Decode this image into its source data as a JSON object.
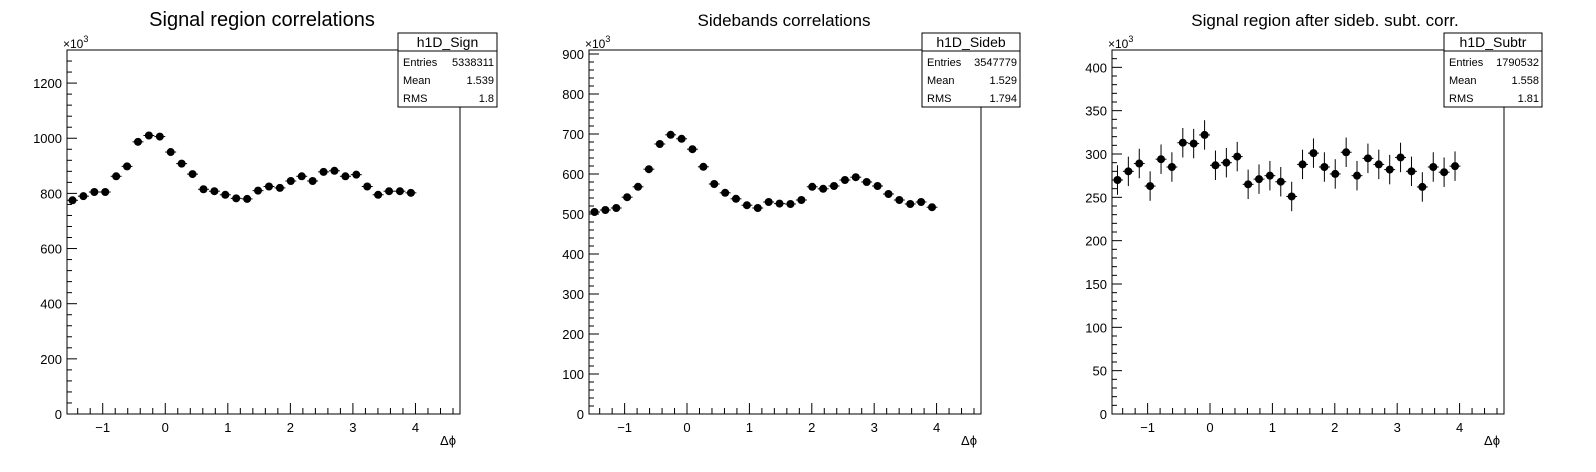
{
  "chart_data": [
    {
      "type": "scatter",
      "title": "Signal region correlations",
      "xlabel": "Δϕ",
      "ylabel": "",
      "y_multiplier_label": "×10",
      "y_multiplier_exp": "3",
      "xlim": [
        -1.571,
        4.712
      ],
      "ylim": [
        0,
        1320
      ],
      "x_ticks": [
        -1,
        0,
        1,
        2,
        3,
        4
      ],
      "y_ticks": [
        0,
        200,
        400,
        600,
        800,
        1000,
        1200
      ],
      "stats": {
        "name": "h1D_Sign",
        "entries_label": "Entries",
        "entries": "5338311",
        "mean_label": "Mean",
        "mean": "1.539",
        "rms_label": "RMS",
        "rms": "1.8"
      },
      "points": [
        {
          "x": -1.483,
          "y": 775
        },
        {
          "x": -1.309,
          "y": 790
        },
        {
          "x": -1.134,
          "y": 805
        },
        {
          "x": -0.96,
          "y": 805
        },
        {
          "x": -0.785,
          "y": 862
        },
        {
          "x": -0.611,
          "y": 898
        },
        {
          "x": -0.436,
          "y": 987
        },
        {
          "x": -0.262,
          "y": 1010
        },
        {
          "x": -0.087,
          "y": 1006
        },
        {
          "x": 0.087,
          "y": 950
        },
        {
          "x": 0.262,
          "y": 908
        },
        {
          "x": 0.436,
          "y": 870
        },
        {
          "x": 0.611,
          "y": 815
        },
        {
          "x": 0.785,
          "y": 808
        },
        {
          "x": 0.96,
          "y": 795
        },
        {
          "x": 1.134,
          "y": 782
        },
        {
          "x": 1.309,
          "y": 780
        },
        {
          "x": 1.483,
          "y": 810
        },
        {
          "x": 1.658,
          "y": 825
        },
        {
          "x": 1.833,
          "y": 820
        },
        {
          "x": 2.007,
          "y": 845
        },
        {
          "x": 2.182,
          "y": 862
        },
        {
          "x": 2.356,
          "y": 845
        },
        {
          "x": 2.531,
          "y": 878
        },
        {
          "x": 2.705,
          "y": 882
        },
        {
          "x": 2.88,
          "y": 862
        },
        {
          "x": 3.054,
          "y": 868
        },
        {
          "x": 3.229,
          "y": 825
        },
        {
          "x": 3.403,
          "y": 795
        },
        {
          "x": 3.578,
          "y": 808
        },
        {
          "x": 3.752,
          "y": 808
        },
        {
          "x": 3.927,
          "y": 802
        }
      ],
      "err": 6
    },
    {
      "type": "scatter",
      "title": "Sidebands correlations",
      "xlabel": "Δϕ",
      "ylabel": "",
      "y_multiplier_label": "×10",
      "y_multiplier_exp": "3",
      "xlim": [
        -1.571,
        4.712
      ],
      "ylim": [
        0,
        910
      ],
      "x_ticks": [
        -1,
        0,
        1,
        2,
        3,
        4
      ],
      "y_ticks": [
        0,
        100,
        200,
        300,
        400,
        500,
        600,
        700,
        800,
        900
      ],
      "stats": {
        "name": "h1D_Sideb",
        "entries_label": "Entries",
        "entries": "3547779",
        "mean_label": "Mean",
        "mean": "1.529",
        "rms_label": "RMS",
        "rms": "1.794"
      },
      "points": [
        {
          "x": -1.483,
          "y": 505
        },
        {
          "x": -1.309,
          "y": 510
        },
        {
          "x": -1.134,
          "y": 515
        },
        {
          "x": -0.96,
          "y": 542
        },
        {
          "x": -0.785,
          "y": 568
        },
        {
          "x": -0.611,
          "y": 612
        },
        {
          "x": -0.436,
          "y": 675
        },
        {
          "x": -0.262,
          "y": 698
        },
        {
          "x": -0.087,
          "y": 688
        },
        {
          "x": 0.087,
          "y": 662
        },
        {
          "x": 0.262,
          "y": 618
        },
        {
          "x": 0.436,
          "y": 575
        },
        {
          "x": 0.611,
          "y": 553
        },
        {
          "x": 0.785,
          "y": 538
        },
        {
          "x": 0.96,
          "y": 522
        },
        {
          "x": 1.134,
          "y": 515
        },
        {
          "x": 1.309,
          "y": 530
        },
        {
          "x": 1.483,
          "y": 526
        },
        {
          "x": 1.658,
          "y": 525
        },
        {
          "x": 1.833,
          "y": 535
        },
        {
          "x": 2.007,
          "y": 568
        },
        {
          "x": 2.182,
          "y": 563
        },
        {
          "x": 2.356,
          "y": 570
        },
        {
          "x": 2.531,
          "y": 585
        },
        {
          "x": 2.705,
          "y": 592
        },
        {
          "x": 2.88,
          "y": 580
        },
        {
          "x": 3.054,
          "y": 570
        },
        {
          "x": 3.229,
          "y": 550
        },
        {
          "x": 3.403,
          "y": 535
        },
        {
          "x": 3.578,
          "y": 525
        },
        {
          "x": 3.752,
          "y": 530
        },
        {
          "x": 3.927,
          "y": 517
        }
      ],
      "err": 4
    },
    {
      "type": "scatter",
      "title": "Signal region after sideb. subt. corr.",
      "xlabel": "Δϕ",
      "ylabel": "",
      "y_multiplier_label": "×10",
      "y_multiplier_exp": "3",
      "xlim": [
        -1.571,
        4.712
      ],
      "ylim": [
        0,
        420
      ],
      "x_ticks": [
        -1,
        0,
        1,
        2,
        3,
        4
      ],
      "y_ticks": [
        0,
        50,
        100,
        150,
        200,
        250,
        300,
        350,
        400
      ],
      "stats": {
        "name": "h1D_Subtr",
        "entries_label": "Entries",
        "entries": "1790532",
        "mean_label": "Mean",
        "mean": "1.558",
        "rms_label": "RMS",
        "rms": "1.81"
      },
      "points": [
        {
          "x": -1.483,
          "y": 270
        },
        {
          "x": -1.309,
          "y": 280
        },
        {
          "x": -1.134,
          "y": 289
        },
        {
          "x": -0.96,
          "y": 263
        },
        {
          "x": -0.785,
          "y": 294
        },
        {
          "x": -0.611,
          "y": 285
        },
        {
          "x": -0.436,
          "y": 313
        },
        {
          "x": -0.262,
          "y": 312
        },
        {
          "x": -0.087,
          "y": 322
        },
        {
          "x": 0.087,
          "y": 287
        },
        {
          "x": 0.262,
          "y": 290
        },
        {
          "x": 0.436,
          "y": 297
        },
        {
          "x": 0.611,
          "y": 265
        },
        {
          "x": 0.785,
          "y": 271
        },
        {
          "x": 0.96,
          "y": 275
        },
        {
          "x": 1.134,
          "y": 268
        },
        {
          "x": 1.309,
          "y": 251
        },
        {
          "x": 1.483,
          "y": 288
        },
        {
          "x": 1.658,
          "y": 301
        },
        {
          "x": 1.833,
          "y": 285
        },
        {
          "x": 2.007,
          "y": 277
        },
        {
          "x": 2.182,
          "y": 302
        },
        {
          "x": 2.356,
          "y": 275
        },
        {
          "x": 2.531,
          "y": 295
        },
        {
          "x": 2.705,
          "y": 288
        },
        {
          "x": 2.88,
          "y": 282
        },
        {
          "x": 3.054,
          "y": 296
        },
        {
          "x": 3.229,
          "y": 280
        },
        {
          "x": 3.403,
          "y": 262
        },
        {
          "x": 3.578,
          "y": 285
        },
        {
          "x": 3.752,
          "y": 279
        },
        {
          "x": 3.927,
          "y": 286
        }
      ],
      "err": 17
    }
  ]
}
